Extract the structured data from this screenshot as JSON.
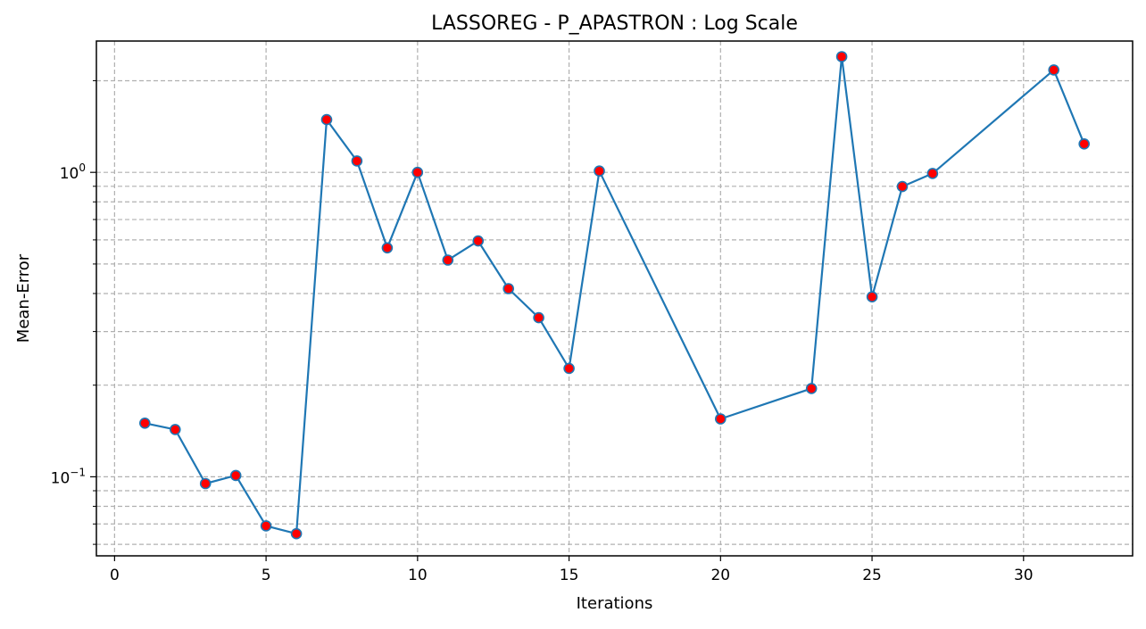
{
  "chart_data": {
    "type": "line",
    "title": "LASSOREG - P_APASTRON : Log Scale",
    "xlabel": "Iterations",
    "ylabel": "Mean-Error",
    "yscale": "log",
    "grid": true,
    "grid_style": "dashed",
    "xlim": [
      -0.6,
      33.6
    ],
    "ylim": [
      0.055,
      2.7
    ],
    "x_ticks": [
      0,
      5,
      10,
      15,
      20,
      25,
      30
    ],
    "y_major_ticks": [
      {
        "value": 0.1,
        "base": "10",
        "exp": "−1"
      },
      {
        "value": 1,
        "base": "10",
        "exp": "0"
      }
    ],
    "y_minor_ticks": [
      0.06,
      0.07,
      0.08,
      0.09,
      0.2,
      0.3,
      0.4,
      0.5,
      0.6,
      0.7,
      0.8,
      0.9,
      2
    ],
    "series": [
      {
        "line_color": "#1f77b4",
        "marker_face_color": "#ff0000",
        "marker_edge_color": "#1f77b4",
        "x": [
          1,
          2,
          3,
          4,
          5,
          6,
          7,
          8,
          9,
          10,
          11,
          12,
          13,
          14,
          15,
          16,
          20,
          23,
          24,
          25,
          26,
          27,
          31,
          32
        ],
        "y": [
          0.15,
          0.143,
          0.095,
          0.101,
          0.069,
          0.065,
          1.49,
          1.09,
          0.565,
          1.0,
          0.515,
          0.595,
          0.415,
          0.333,
          0.227,
          1.01,
          0.155,
          0.195,
          2.4,
          0.39,
          0.898,
          0.992,
          2.17,
          1.24
        ]
      }
    ]
  }
}
